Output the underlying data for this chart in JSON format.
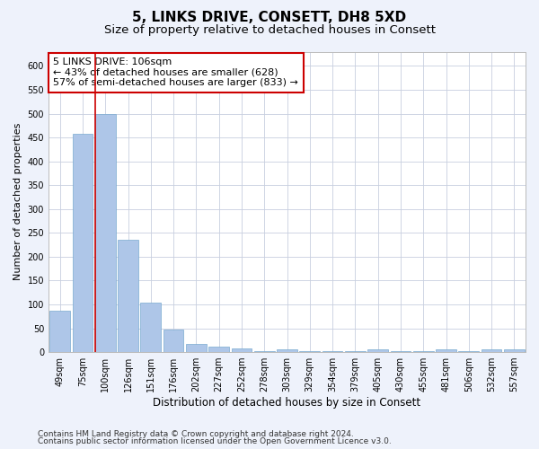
{
  "title": "5, LINKS DRIVE, CONSETT, DH8 5XD",
  "subtitle": "Size of property relative to detached houses in Consett",
  "xlabel": "Distribution of detached houses by size in Consett",
  "ylabel": "Number of detached properties",
  "categories": [
    "49sqm",
    "75sqm",
    "100sqm",
    "126sqm",
    "151sqm",
    "176sqm",
    "202sqm",
    "227sqm",
    "252sqm",
    "278sqm",
    "303sqm",
    "329sqm",
    "354sqm",
    "379sqm",
    "405sqm",
    "430sqm",
    "455sqm",
    "481sqm",
    "506sqm",
    "532sqm",
    "557sqm"
  ],
  "values": [
    87,
    458,
    500,
    235,
    103,
    47,
    18,
    12,
    7,
    2,
    5,
    2,
    2,
    2,
    5,
    2,
    2,
    5,
    2,
    5,
    5
  ],
  "bar_color": "#aec6e8",
  "bar_edge_color": "#7aaad0",
  "vline_x_index": 2,
  "vline_color": "#cc0000",
  "annotation_text": "5 LINKS DRIVE: 106sqm\n← 43% of detached houses are smaller (628)\n57% of semi-detached houses are larger (833) →",
  "annotation_box_color": "white",
  "annotation_box_edge_color": "#cc0000",
  "ylim": [
    0,
    630
  ],
  "yticks": [
    0,
    50,
    100,
    150,
    200,
    250,
    300,
    350,
    400,
    450,
    500,
    550,
    600
  ],
  "footer_line1": "Contains HM Land Registry data © Crown copyright and database right 2024.",
  "footer_line2": "Contains public sector information licensed under the Open Government Licence v3.0.",
  "bg_color": "#eef2fb",
  "plot_bg_color": "#ffffff",
  "grid_color": "#c8cfdf",
  "title_fontsize": 11,
  "subtitle_fontsize": 9.5,
  "xlabel_fontsize": 8.5,
  "ylabel_fontsize": 8,
  "tick_fontsize": 7,
  "annotation_fontsize": 8,
  "footer_fontsize": 6.5
}
